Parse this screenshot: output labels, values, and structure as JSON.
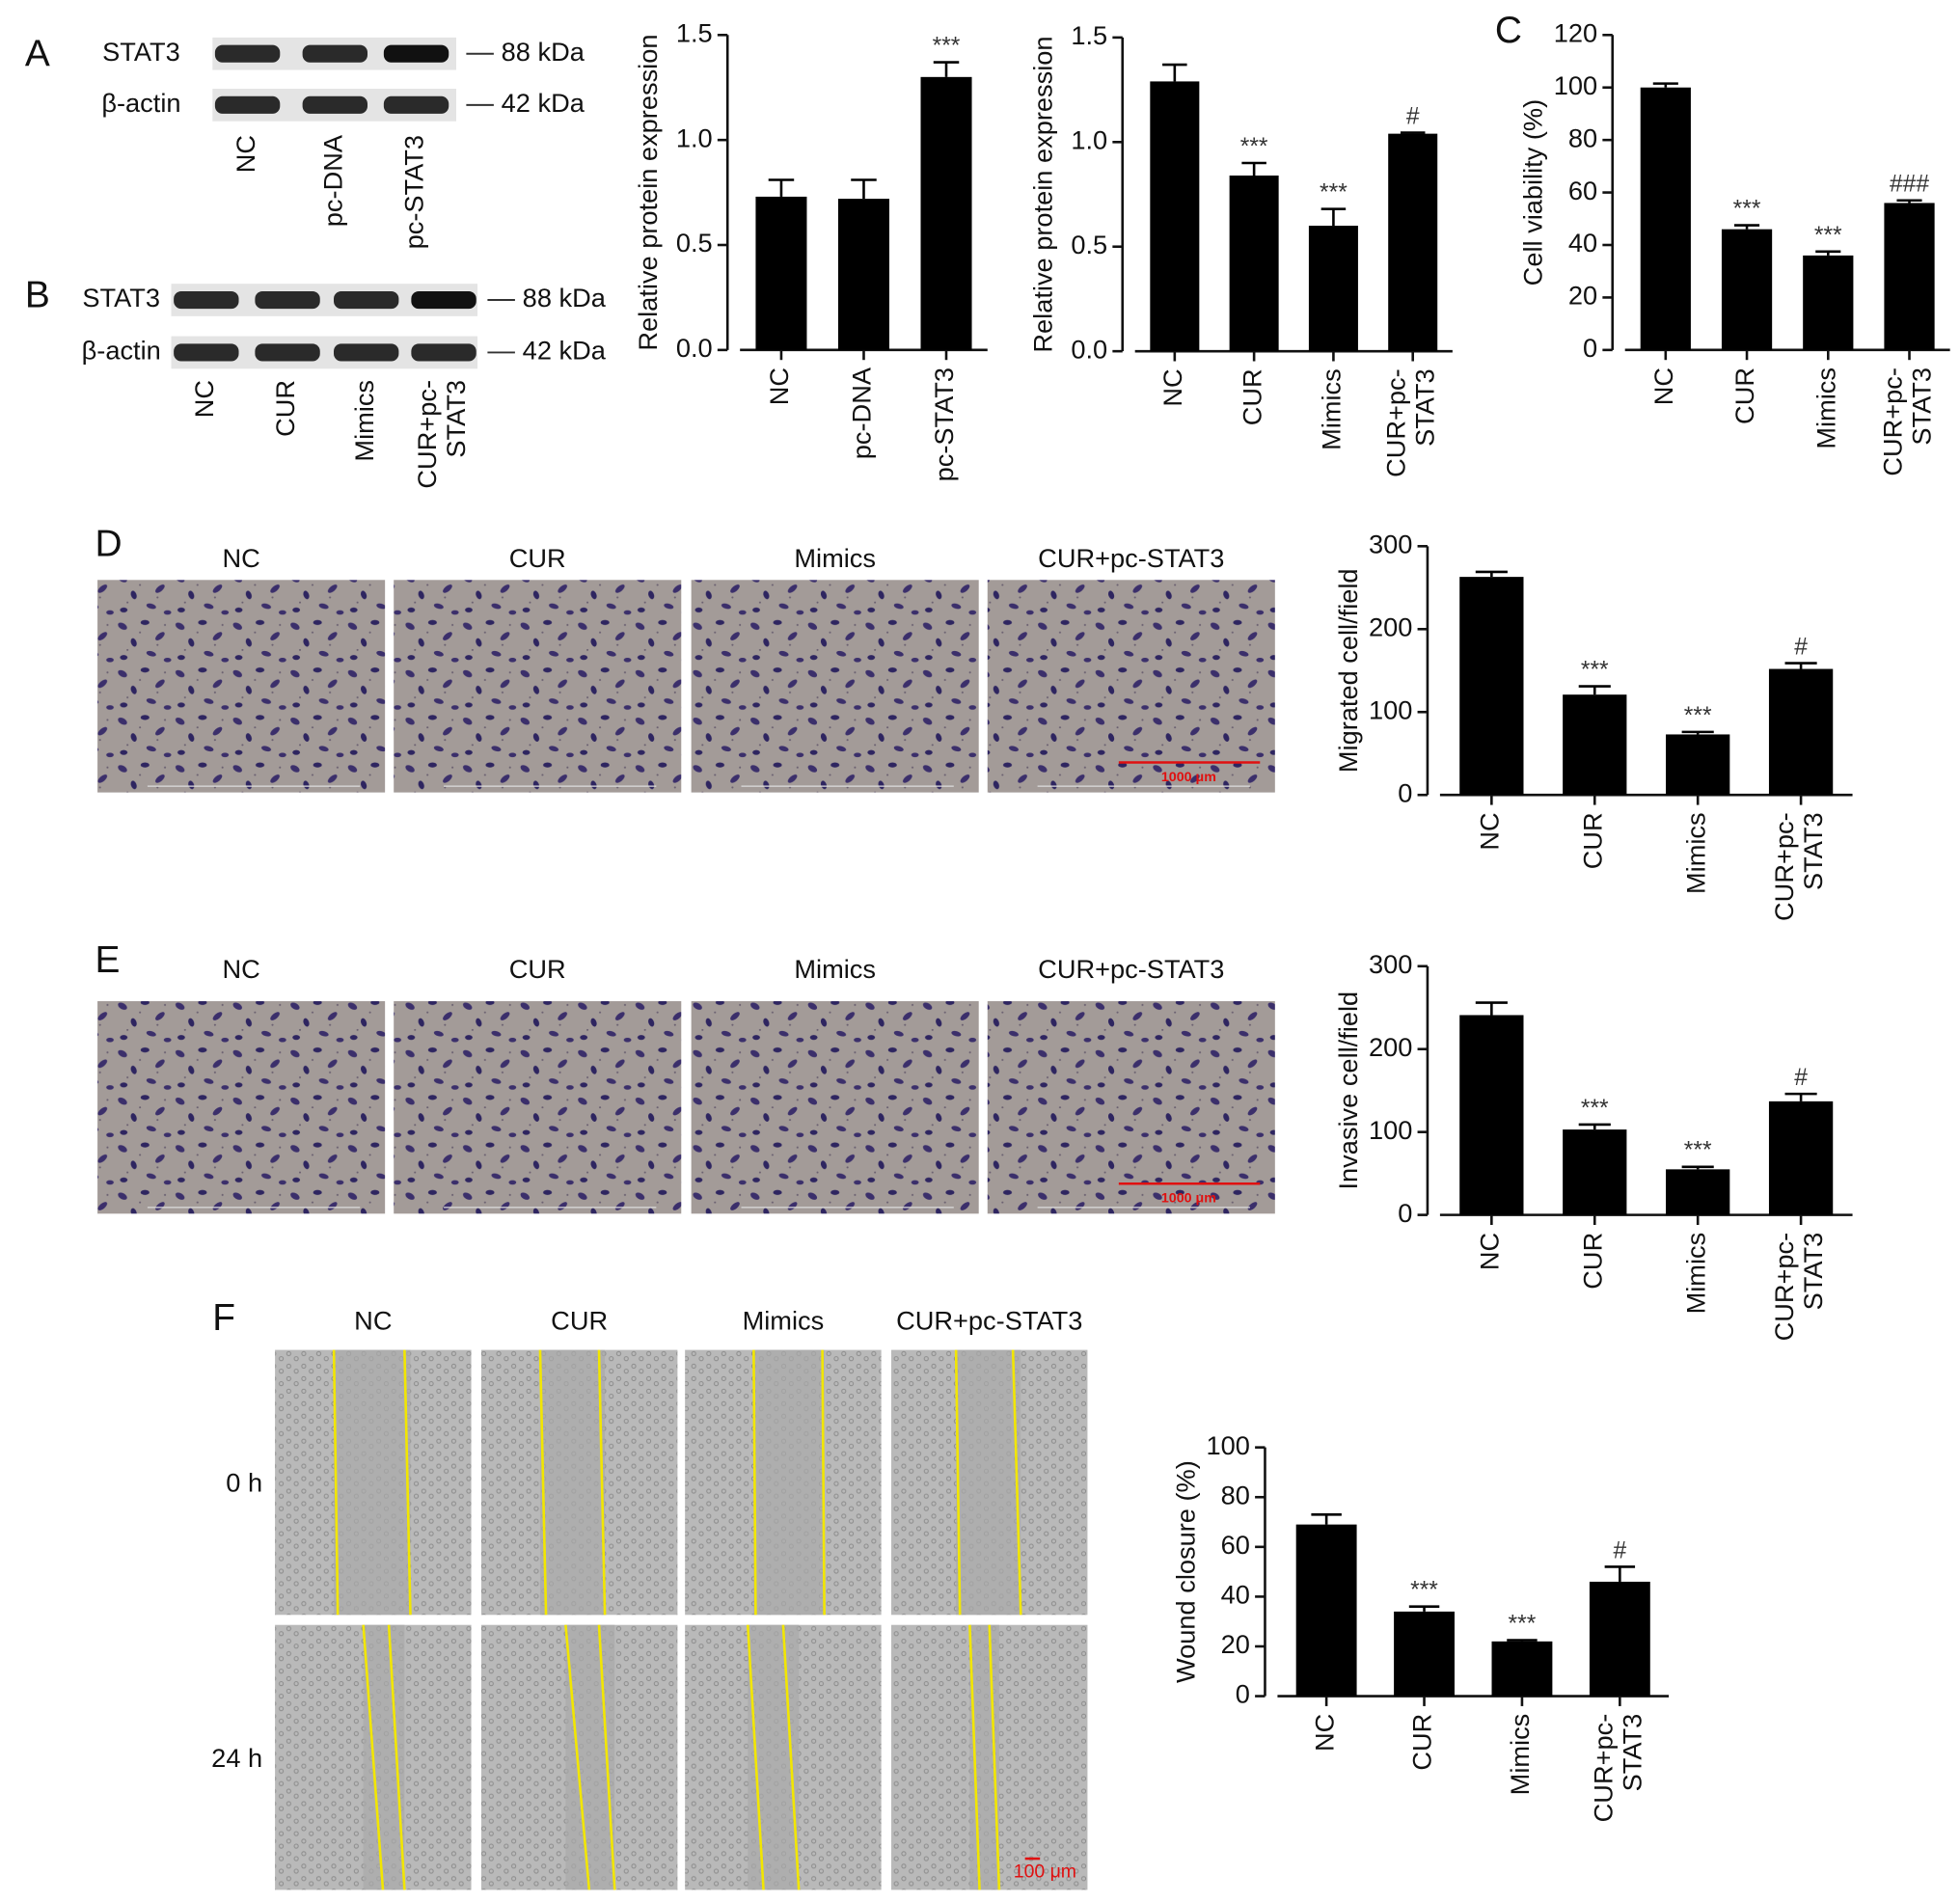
{
  "panel_labels": [
    "A",
    "B",
    "C",
    "D",
    "E",
    "F"
  ],
  "blot_a": {
    "rows": [
      "STAT3",
      "β-actin"
    ],
    "sizes": [
      "88 kDa",
      "42 kDa"
    ],
    "lanes": [
      "NC",
      "pc-DNA",
      "pc-STAT3"
    ]
  },
  "blot_b": {
    "rows": [
      "STAT3",
      "β-actin"
    ],
    "sizes": [
      "88 kDa",
      "42 kDa"
    ],
    "lanes": [
      "NC",
      "CUR",
      "Mimics",
      "CUR+pc-STAT3"
    ]
  },
  "images_d": {
    "columns": [
      "NC",
      "CUR",
      "Mimics",
      "CUR+pc-STAT3"
    ],
    "scale_bar": "1000 μm"
  },
  "images_e": {
    "columns": [
      "NC",
      "CUR",
      "Mimics",
      "CUR+pc-STAT3"
    ],
    "scale_bar": "1000 μm"
  },
  "images_f": {
    "columns": [
      "NC",
      "CUR",
      "Mimics",
      "CUR+pc-STAT3"
    ],
    "rows": [
      "0 h",
      "24 h"
    ],
    "scale_bar": "100 μm"
  },
  "chart_data": [
    {
      "type": "bar",
      "y_label": "Relative protein expression",
      "categories": [
        "NC",
        "pc-DNA",
        "pc-STAT3"
      ],
      "values": [
        0.73,
        0.72,
        1.3
      ],
      "errors": [
        0.08,
        0.09,
        0.07
      ],
      "annotations": [
        null,
        null,
        "***"
      ],
      "color": "#000000",
      "ylim": [
        0,
        1.5
      ],
      "yticks": [
        {
          "value": 0,
          "label": "0.0"
        },
        {
          "value": 0.5,
          "label": "0.5"
        },
        {
          "value": 1,
          "label": "1.0"
        },
        {
          "value": 1.5,
          "label": "1.5"
        }
      ]
    },
    {
      "type": "bar",
      "y_label": "Relative protein expression",
      "categories": [
        "NC",
        "CUR",
        "Mimics",
        "CUR+pc-STAT3"
      ],
      "values": [
        1.29,
        0.84,
        0.6,
        1.04
      ],
      "errors": [
        0.08,
        0.06,
        0.08,
        0.005
      ],
      "annotations": [
        null,
        "***",
        "***",
        "#"
      ],
      "color": "#000000",
      "ylim": [
        0,
        1.5
      ],
      "yticks": [
        {
          "value": 0,
          "label": "0.0"
        },
        {
          "value": 0.5,
          "label": "0.5"
        },
        {
          "value": 1,
          "label": "1.0"
        },
        {
          "value": 1.5,
          "label": "1.5"
        }
      ]
    },
    {
      "type": "bar",
      "y_label": "Cell viability (%)",
      "categories": [
        "NC",
        "CUR",
        "Mimics",
        "CUR+pc-STAT3"
      ],
      "values": [
        100,
        46,
        36,
        56
      ],
      "errors": [
        1.5,
        1.5,
        1.5,
        1
      ],
      "annotations": [
        null,
        "***",
        "***",
        "###"
      ],
      "color": "#000000",
      "ylim": [
        0,
        120
      ],
      "yticks": [
        0,
        20,
        40,
        60,
        80,
        100,
        120
      ]
    },
    {
      "type": "bar",
      "y_label": "Migrated cell/field",
      "categories": [
        "NC",
        "CUR",
        "Mimics",
        "CUR+pc-STAT3"
      ],
      "values": [
        263,
        121,
        73,
        152
      ],
      "errors": [
        6,
        10,
        3,
        7
      ],
      "annotations": [
        null,
        "***",
        "***",
        "#"
      ],
      "color": "#000000",
      "ylim": [
        0,
        300
      ],
      "yticks": [
        0,
        100,
        200,
        300
      ]
    },
    {
      "type": "bar",
      "y_label": "Invasive cell/field",
      "categories": [
        "NC",
        "CUR",
        "Mimics",
        "CUR+pc-STAT3"
      ],
      "values": [
        241,
        103,
        55,
        137
      ],
      "errors": [
        15,
        6,
        3,
        9
      ],
      "annotations": [
        null,
        "***",
        "***",
        "#"
      ],
      "color": "#000000",
      "ylim": [
        0,
        300
      ],
      "yticks": [
        0,
        100,
        200,
        300
      ]
    },
    {
      "type": "bar",
      "y_label": "Wound closure (%)",
      "categories": [
        "NC",
        "CUR",
        "Mimics",
        "CUR+pc-STAT3"
      ],
      "values": [
        69,
        34,
        22,
        46
      ],
      "errors": [
        4,
        2,
        0.5,
        6
      ],
      "annotations": [
        null,
        "***",
        "***",
        "#"
      ],
      "color": "#000000",
      "ylim": [
        0,
        100
      ],
      "yticks": [
        0,
        20,
        40,
        60,
        80,
        100
      ]
    }
  ]
}
